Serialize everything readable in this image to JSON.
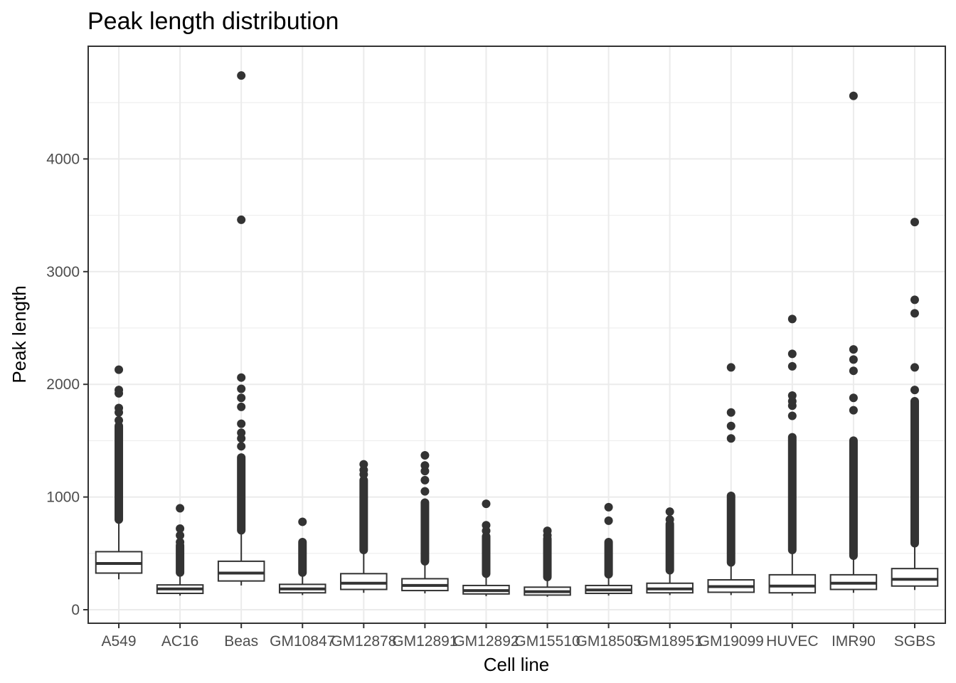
{
  "chart_data": {
    "type": "boxplot",
    "title": "Peak length distribution",
    "xlabel": "Cell line",
    "ylabel": "Peak length",
    "ylim": [
      -120,
      5000
    ],
    "yticks": [
      0,
      1000,
      2000,
      3000,
      4000
    ],
    "ytick_labels": [
      "0",
      "1000",
      "2000",
      "3000",
      "4000"
    ],
    "grid": true,
    "legend": "none",
    "categories": [
      "A549",
      "AC16",
      "Beas",
      "GM10847",
      "GM12878",
      "GM12891",
      "GM12892",
      "GM15510",
      "GM18505",
      "GM18951",
      "GM19099",
      "HUVEC",
      "IMR90",
      "SGBS"
    ],
    "boxes": [
      {
        "name": "A549",
        "whisker_low": 270,
        "q1": 325,
        "median": 410,
        "q3": 515,
        "whisker_high": 800,
        "outliers_dense": [
          800,
          1630
        ],
        "outliers": [
          1680,
          1750,
          1790,
          1920,
          1950,
          2130
        ]
      },
      {
        "name": "AC16",
        "whisker_low": 125,
        "q1": 145,
        "median": 185,
        "q3": 220,
        "whisker_high": 330,
        "outliers_dense": [
          330,
          570
        ],
        "outliers": [
          600,
          660,
          720,
          900
        ]
      },
      {
        "name": "Beas",
        "whisker_low": 215,
        "q1": 255,
        "median": 325,
        "q3": 430,
        "whisker_high": 705,
        "outliers_dense": [
          705,
          1350
        ],
        "outliers": [
          1450,
          1520,
          1570,
          1650,
          1800,
          1880,
          1960,
          2060,
          3460,
          4740
        ]
      },
      {
        "name": "GM10847",
        "whisker_low": 130,
        "q1": 150,
        "median": 185,
        "q3": 225,
        "whisker_high": 330,
        "outliers_dense": [
          330,
          600
        ],
        "outliers": [
          780
        ]
      },
      {
        "name": "GM12878",
        "whisker_low": 150,
        "q1": 180,
        "median": 235,
        "q3": 320,
        "whisker_high": 530,
        "outliers_dense": [
          530,
          1150
        ],
        "outliers": [
          1200,
          1240,
          1290
        ]
      },
      {
        "name": "GM12891",
        "whisker_low": 145,
        "q1": 170,
        "median": 215,
        "q3": 275,
        "whisker_high": 430,
        "outliers_dense": [
          430,
          950
        ],
        "outliers": [
          1050,
          1150,
          1230,
          1280,
          1370
        ]
      },
      {
        "name": "GM12892",
        "whisker_low": 120,
        "q1": 140,
        "median": 170,
        "q3": 215,
        "whisker_high": 320,
        "outliers_dense": [
          320,
          650
        ],
        "outliers": [
          700,
          750,
          940
        ]
      },
      {
        "name": "GM15510",
        "whisker_low": 115,
        "q1": 130,
        "median": 160,
        "q3": 200,
        "whisker_high": 290,
        "outliers_dense": [
          290,
          630
        ],
        "outliers": [
          660,
          700
        ]
      },
      {
        "name": "GM18505",
        "whisker_low": 125,
        "q1": 145,
        "median": 175,
        "q3": 215,
        "whisker_high": 315,
        "outliers_dense": [
          315,
          600
        ],
        "outliers": [
          790,
          910
        ]
      },
      {
        "name": "GM18951",
        "whisker_low": 130,
        "q1": 150,
        "median": 185,
        "q3": 235,
        "whisker_high": 350,
        "outliers_dense": [
          350,
          760
        ],
        "outliers": [
          800,
          870
        ]
      },
      {
        "name": "GM19099",
        "whisker_low": 130,
        "q1": 155,
        "median": 205,
        "q3": 265,
        "whisker_high": 420,
        "outliers_dense": [
          420,
          1010
        ],
        "outliers": [
          1520,
          1630,
          1750,
          2150
        ]
      },
      {
        "name": "HUVEC",
        "whisker_low": 125,
        "q1": 150,
        "median": 210,
        "q3": 310,
        "whisker_high": 530,
        "outliers_dense": [
          530,
          1530
        ],
        "outliers": [
          1720,
          1810,
          1850,
          1900,
          2160,
          2270,
          2580
        ]
      },
      {
        "name": "IMR90",
        "whisker_low": 150,
        "q1": 180,
        "median": 235,
        "q3": 310,
        "whisker_high": 480,
        "outliers_dense": [
          480,
          1500
        ],
        "outliers": [
          1770,
          1880,
          2120,
          2220,
          2310,
          4560
        ]
      },
      {
        "name": "SGBS",
        "whisker_low": 175,
        "q1": 210,
        "median": 270,
        "q3": 365,
        "whisker_high": 590,
        "outliers_dense": [
          590,
          1850
        ],
        "outliers": [
          1950,
          2150,
          2630,
          2750,
          3440
        ]
      }
    ]
  }
}
